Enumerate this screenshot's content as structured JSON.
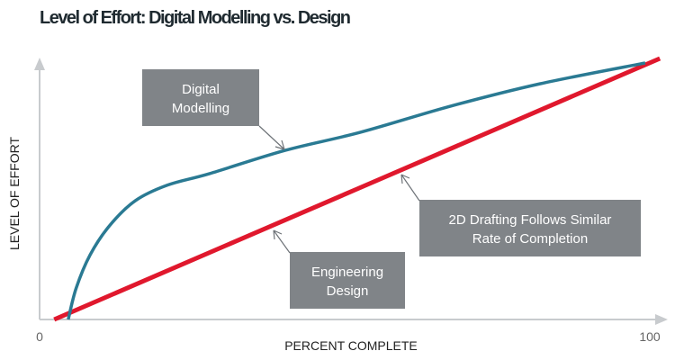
{
  "chart_data": {
    "type": "line",
    "title": "Level of Effort: Digital Modelling vs. Design",
    "xlabel": "PERCENT COMPLETE",
    "ylabel": "LEVEL OF EFFORT",
    "xlim": [
      0,
      100
    ],
    "ylim": [
      0,
      100
    ],
    "x_tick_labels": [
      "0",
      "100"
    ],
    "grid": false,
    "colors": {
      "digital_modelling": "#2a7a93",
      "engineering_design": "#e0182d",
      "axis": "#c8cbce",
      "annotation_box": "#808488"
    },
    "series": [
      {
        "key": "digital_modelling",
        "points": [
          [
            4.7,
            0
          ],
          [
            6,
            12
          ],
          [
            8.3,
            24.8
          ],
          [
            11.5,
            36
          ],
          [
            15.7,
            45.5
          ],
          [
            21,
            51.5
          ],
          [
            27.9,
            55.9
          ],
          [
            40.3,
            64.8
          ],
          [
            52.6,
            71.7
          ],
          [
            67.4,
            81.7
          ],
          [
            82.1,
            90.3
          ],
          [
            99.4,
            98.3
          ]
        ]
      },
      {
        "key": "engineering_design",
        "points": [
          [
            2.4,
            0
          ],
          [
            101.8,
            100
          ]
        ]
      }
    ],
    "annotations": [
      {
        "key": "digital",
        "lines": [
          "Digital",
          "Modelling"
        ]
      },
      {
        "key": "engineering",
        "lines": [
          "Engineering",
          "Design"
        ]
      },
      {
        "key": "drafting",
        "lines": [
          "2D Drafting Follows Similar",
          "Rate of Completion"
        ]
      }
    ]
  }
}
